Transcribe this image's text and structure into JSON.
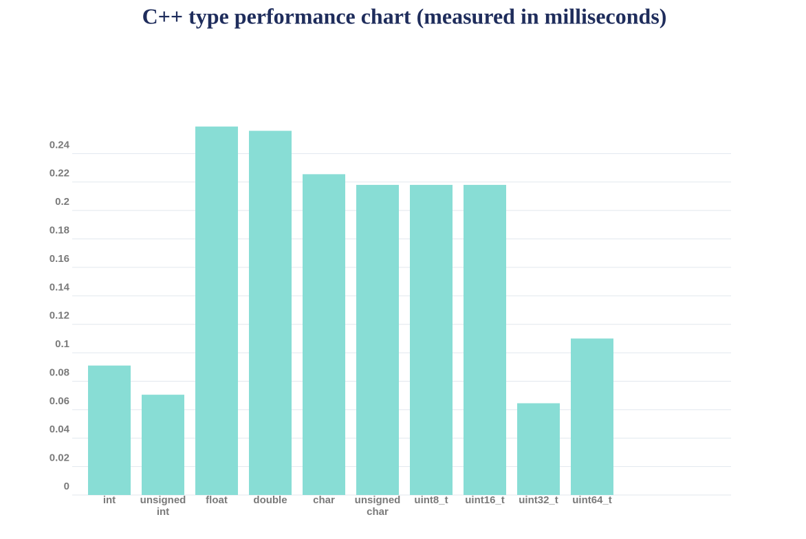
{
  "chart_data": {
    "type": "bar",
    "title": "C++ type performance chart (measured in milliseconds)",
    "categories": [
      "int",
      "unsigned int",
      "float",
      "double",
      "char",
      "unsigned char",
      "uint8_t",
      "uint16_t",
      "uint32_t",
      "uint64_t"
    ],
    "values": [
      0.091,
      0.0705,
      0.259,
      0.256,
      0.2255,
      0.218,
      0.218,
      0.218,
      0.0645,
      0.11
    ],
    "color": "#88ddd5",
    "ylim": [
      0,
      0.26
    ],
    "yticks": [
      0,
      0.02,
      0.04,
      0.06,
      0.08,
      0.1,
      0.12,
      0.14,
      0.16,
      0.18,
      0.2,
      0.22,
      0.24
    ],
    "grid": true
  }
}
